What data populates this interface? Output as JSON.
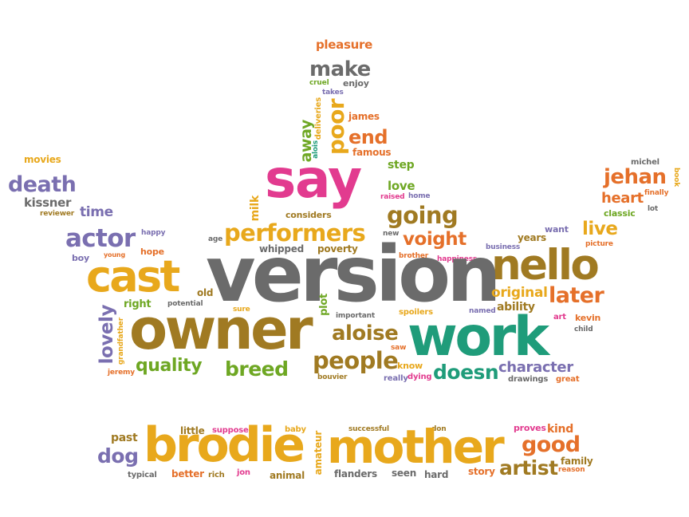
{
  "colors": {
    "gold": "#e8a81c",
    "orange": "#e5702a",
    "brown": "#a07a22",
    "green": "#6ea723",
    "teal": "#1f9c7a",
    "purple": "#7a6fb0",
    "grey": "#6b6b6b",
    "pink": "#e23b8f",
    "magenta": "#d23aa6"
  },
  "words": {
    "pleasure": "pleasure",
    "make": "make",
    "cruel": "cruel",
    "enjoy": "enjoy",
    "takes": "takes",
    "poor": "poor",
    "james": "james",
    "alois": "alois",
    "deliveries": "deliveries",
    "away": "away",
    "end": "end",
    "famous": "famous",
    "say": "say",
    "step": "step",
    "love": "love",
    "raised": "raised",
    "home": "home",
    "milk": "milk",
    "movies": "movies",
    "death": "death",
    "kissner": "kissner",
    "reviewer": "reviewer",
    "time": "time",
    "actor": "actor",
    "happy": "happy",
    "hope": "hope",
    "boy": "boy",
    "young": "young",
    "cast": "cast",
    "age": "age",
    "performers": "performers",
    "considers": "considers",
    "going": "going",
    "new": "new",
    "whipped": "whipped",
    "poverty": "poverty",
    "voight": "voight",
    "version": "version",
    "brother": "brother",
    "happiness": "happiness",
    "want": "want",
    "years": "years",
    "business": "business",
    "live": "live",
    "picture": "picture",
    "nello": "nello",
    "michel": "michel",
    "book": "book",
    "jehan": "jehan",
    "heart": "heart",
    "finally": "finally",
    "classic": "classic",
    "lot": "lot",
    "lovely": "lovely",
    "right": "right",
    "grandfather": "grandfather",
    "old": "old",
    "potential": "potential",
    "sure": "sure",
    "plot": "plot",
    "important": "important",
    "spoilers": "spoilers",
    "named": "named",
    "ability": "ability",
    "original": "original",
    "later": "later",
    "owner": "owner",
    "aloise": "aloise",
    "work": "work",
    "art": "art",
    "kevin": "kevin",
    "child": "child",
    "jeremy": "jeremy",
    "quality": "quality",
    "breed": "breed",
    "people": "people",
    "saw": "saw",
    "know": "know",
    "bouvier": "bouvier",
    "really": "really",
    "dying": "dying",
    "doesn": "doesn",
    "character": "character",
    "drawings": "drawings",
    "great": "great",
    "little": "little",
    "supposed": "supposed",
    "baby": "baby",
    "successful": "successful",
    "don": "don",
    "proves": "proves",
    "kind": "kind",
    "past": "past",
    "brodie": "brodie",
    "mother": "mother",
    "good": "good",
    "dog": "dog",
    "amateur": "amateur",
    "artist": "artist",
    "family": "family",
    "reason": "reason",
    "typical": "typical",
    "better": "better",
    "rich": "rich",
    "jon": "jon",
    "animal": "animal",
    "flanders": "flanders",
    "seen": "seen",
    "hard": "hard",
    "story": "story"
  }
}
